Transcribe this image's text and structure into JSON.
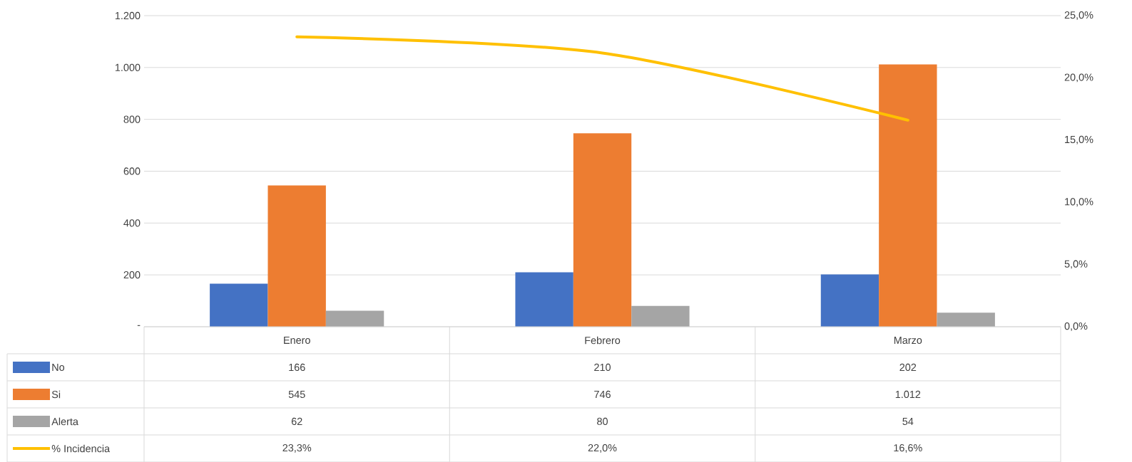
{
  "chart_data": {
    "type": "bar",
    "categories": [
      "Enero",
      "Febrero",
      "Marzo"
    ],
    "series": [
      {
        "name": "No",
        "color": "#4472c4",
        "values": [
          166,
          210,
          202
        ],
        "value_labels": [
          "166",
          "210",
          "202"
        ]
      },
      {
        "name": "Si",
        "color": "#ed7d31",
        "values": [
          545,
          746,
          1012
        ],
        "value_labels": [
          "545",
          "746",
          "1.012"
        ]
      },
      {
        "name": "Alerta",
        "color": "#a5a5a5",
        "values": [
          62,
          80,
          54
        ],
        "value_labels": [
          "62",
          "80",
          "54"
        ]
      },
      {
        "name": "% Incidencia",
        "type": "line",
        "axis": "y2",
        "color": "#ffc000",
        "values": [
          23.3,
          22.0,
          16.6
        ],
        "value_labels": [
          "23,3%",
          "22,0%",
          "16,6%"
        ],
        "marker": "none"
      }
    ],
    "ylim": [
      0,
      1200
    ],
    "yticks": [
      {
        "value": 0,
        "label": "-"
      },
      200,
      400,
      600,
      800,
      {
        "value": 1000,
        "label": "1.000"
      },
      {
        "value": 1200,
        "label": "1.200"
      }
    ],
    "y2lim": [
      0,
      25
    ],
    "y2ticks": [
      {
        "value": 0,
        "label": "0,0%"
      },
      {
        "value": 5,
        "label": "5,0%"
      },
      {
        "value": 10,
        "label": "10,0%"
      },
      {
        "value": 15,
        "label": "15,0%"
      },
      {
        "value": 20,
        "label": "20,0%"
      },
      {
        "value": 25,
        "label": "25,0%"
      }
    ],
    "grid": "y",
    "legend": "bottom"
  }
}
